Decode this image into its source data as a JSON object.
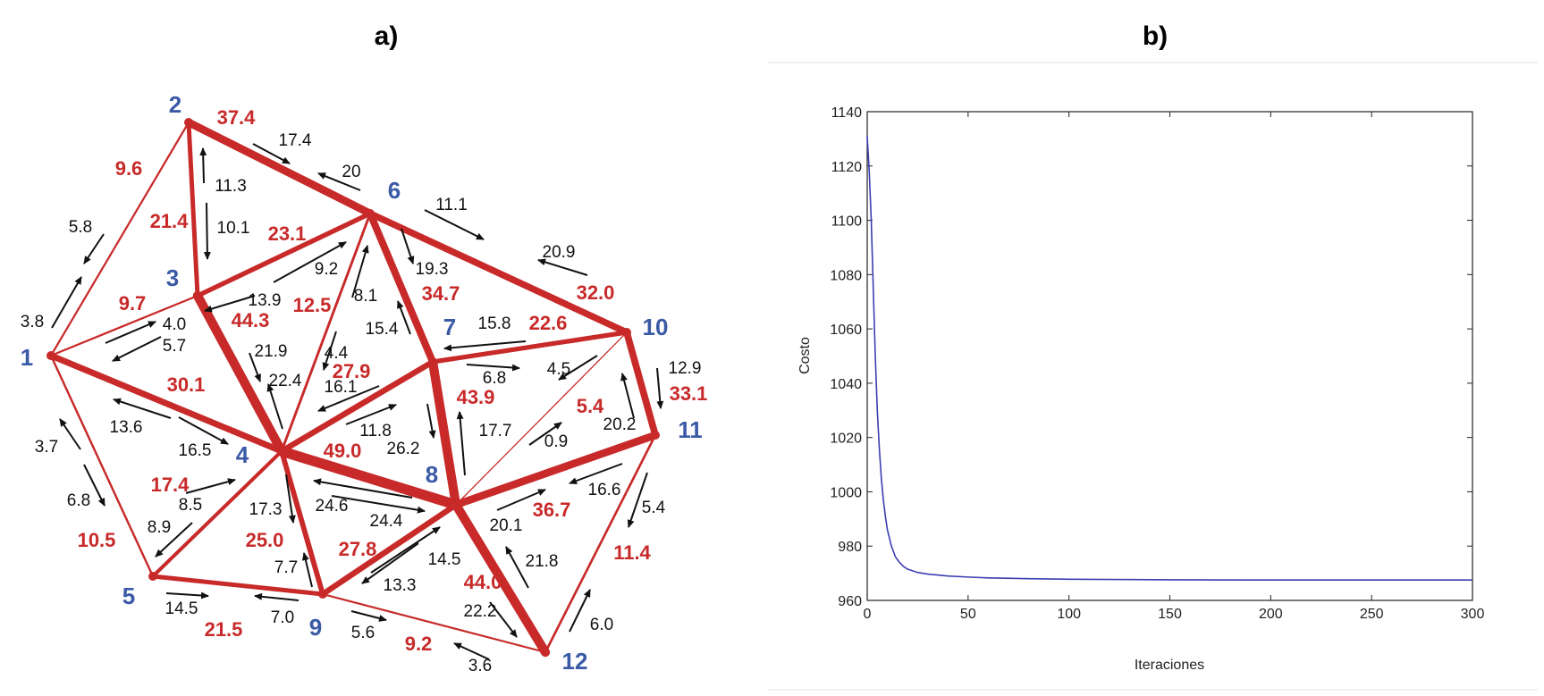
{
  "panels": {
    "a": {
      "title": "a)"
    },
    "b": {
      "title": "b)"
    }
  },
  "colors": {
    "edge": "#c82a2a",
    "node_label": "#3a5aa6",
    "flow_arrow": "#111111",
    "curve": "#3b3fb0"
  },
  "network": {
    "nodes": [
      {
        "id": 1,
        "label": "1"
      },
      {
        "id": 2,
        "label": "2"
      },
      {
        "id": 3,
        "label": "3"
      },
      {
        "id": 4,
        "label": "4"
      },
      {
        "id": 5,
        "label": "5"
      },
      {
        "id": 6,
        "label": "6"
      },
      {
        "id": 7,
        "label": "7"
      },
      {
        "id": 8,
        "label": "8"
      },
      {
        "id": 9,
        "label": "9"
      },
      {
        "id": 10,
        "label": "10"
      },
      {
        "id": 11,
        "label": "11"
      },
      {
        "id": 12,
        "label": "12"
      }
    ],
    "edges": [
      {
        "from": 1,
        "to": 2,
        "value": "9.6",
        "flows": [
          "5.8",
          "3.8"
        ]
      },
      {
        "from": 1,
        "to": 3,
        "value": "9.7",
        "flows": [
          "4.0",
          "5.7"
        ]
      },
      {
        "from": 1,
        "to": 4,
        "value": "30.1",
        "flows": [
          "13.6",
          "16.5"
        ]
      },
      {
        "from": 1,
        "to": 5,
        "value": "10.5",
        "flows": [
          "3.7",
          "6.8"
        ]
      },
      {
        "from": 2,
        "to": 3,
        "value": "21.4",
        "flows": [
          "11.3",
          "10.1"
        ]
      },
      {
        "from": 2,
        "to": 6,
        "value": "37.4",
        "flows": [
          "17.4",
          "20"
        ]
      },
      {
        "from": 3,
        "to": 6,
        "value": "23.1",
        "flows": [
          "9.2",
          "13.9"
        ]
      },
      {
        "from": 3,
        "to": 4,
        "value": "44.3",
        "flows": [
          "21.9",
          "22.4"
        ]
      },
      {
        "from": 4,
        "to": 6,
        "value": "12.5",
        "flows": [
          "8.1",
          "4.4"
        ]
      },
      {
        "from": 6,
        "to": 7,
        "value": "34.7",
        "flows": [
          "19.3",
          "15.4"
        ]
      },
      {
        "from": 6,
        "to": 10,
        "value": "32.0",
        "flows": [
          "11.1",
          "20.9"
        ]
      },
      {
        "from": 4,
        "to": 7,
        "value": "27.9",
        "flows": [
          "16.1",
          "11.8"
        ]
      },
      {
        "from": 7,
        "to": 10,
        "value": "22.6",
        "flows": [
          "15.8",
          "6.8"
        ]
      },
      {
        "from": 7,
        "to": 8,
        "value": "43.9",
        "flows": [
          "26.2",
          "17.7"
        ]
      },
      {
        "from": 4,
        "to": 8,
        "value": "49.0",
        "flows": [
          "24.6",
          "24.4"
        ]
      },
      {
        "from": 10,
        "to": 11,
        "value": "33.1",
        "flows": [
          "12.9",
          "20.2"
        ]
      },
      {
        "from": 8,
        "to": 10,
        "value": "5.4",
        "flows": [
          "4.5",
          "0.9"
        ]
      },
      {
        "from": 4,
        "to": 5,
        "value": "17.4",
        "flows": [
          "8.5",
          "8.9"
        ]
      },
      {
        "from": 4,
        "to": 9,
        "value": "25.0",
        "flows": [
          "17.3",
          "7.7"
        ]
      },
      {
        "from": 8,
        "to": 9,
        "value": "27.8",
        "flows": [
          "14.5",
          "13.3"
        ]
      },
      {
        "from": 8,
        "to": 11,
        "value": "36.7",
        "flows": [
          "16.6",
          "20.1"
        ]
      },
      {
        "from": 8,
        "to": 12,
        "value": "44.0",
        "flows": [
          "21.8",
          "22.2"
        ]
      },
      {
        "from": 5,
        "to": 9,
        "value": "21.5",
        "flows": [
          "14.5",
          "7.0"
        ]
      },
      {
        "from": 9,
        "to": 12,
        "value": "9.2",
        "flows": [
          "5.6",
          "3.6"
        ]
      },
      {
        "from": 11,
        "to": 12,
        "value": "11.4",
        "flows": [
          "5.4",
          "6.0"
        ]
      }
    ]
  },
  "chart_data": {
    "type": "line",
    "title": "",
    "xlabel": "Iteraciones",
    "ylabel": "Costo",
    "xlim": [
      0,
      300
    ],
    "ylim": [
      960,
      1140
    ],
    "xticks": [
      0,
      50,
      100,
      150,
      200,
      250,
      300
    ],
    "yticks": [
      960,
      980,
      1000,
      1020,
      1040,
      1060,
      1080,
      1100,
      1120,
      1140
    ],
    "grid": false,
    "series": [
      {
        "x": [
          0,
          1,
          2,
          3,
          4,
          5,
          6,
          7,
          8,
          9,
          10,
          12,
          14,
          16,
          18,
          20,
          25,
          30,
          40,
          50,
          60,
          80,
          100,
          150,
          200,
          250,
          300
        ],
        "y": [
          1131,
          1118,
          1100,
          1075,
          1050,
          1030,
          1016,
          1005,
          997,
          991,
          986,
          980,
          976,
          974,
          972.5,
          971.5,
          970.3,
          969.7,
          969,
          968.6,
          968.3,
          968,
          967.8,
          967.6,
          967.5,
          967.5,
          967.5
        ]
      }
    ]
  }
}
